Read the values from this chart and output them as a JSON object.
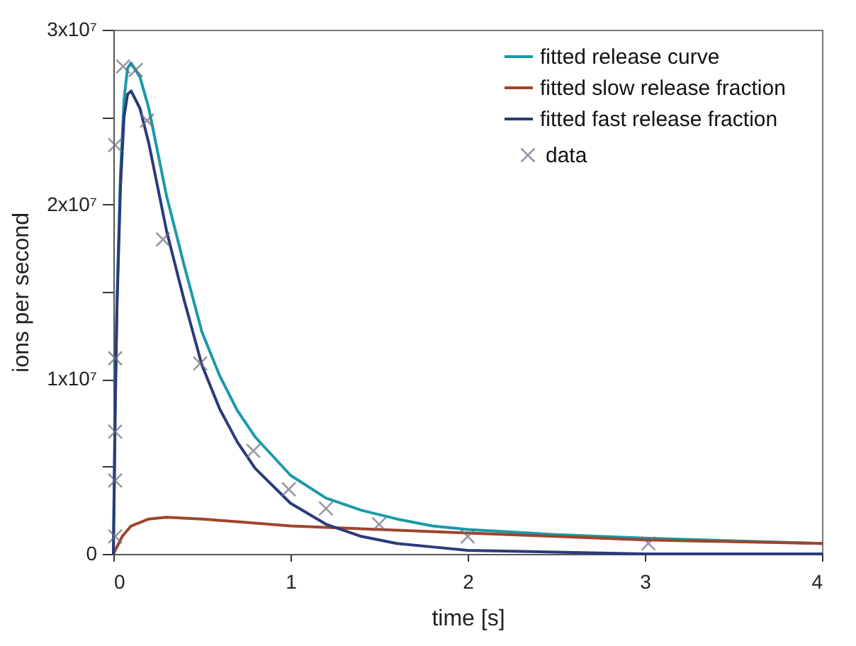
{
  "chart_data": {
    "type": "line",
    "xlabel": "time [s]",
    "ylabel": "ions per second",
    "xlim": [
      0,
      4
    ],
    "xticks": [
      0,
      1,
      2,
      3,
      4
    ],
    "ylim": [
      0,
      30000000
    ],
    "yticks": [
      0,
      {
        "value": 5000000,
        "label": null
      },
      {
        "value": 10000000,
        "label": "1x10⁷"
      },
      {
        "value": 15000000,
        "label": null
      },
      {
        "value": 20000000,
        "label": "2x10⁷"
      },
      {
        "value": 25000000,
        "label": null
      },
      {
        "value": 30000000,
        "label": "3x10⁷"
      }
    ],
    "grid": false,
    "legend": "top right",
    "series": [
      {
        "name": "fitted release curve",
        "color": "#1a9aa8",
        "x": [
          0,
          0.01,
          0.02,
          0.04,
          0.06,
          0.08,
          0.1,
          0.15,
          0.2,
          0.3,
          0.4,
          0.5,
          0.6,
          0.7,
          0.8,
          1.0,
          1.2,
          1.4,
          1.6,
          1.8,
          2.0,
          2.5,
          3.0,
          4.0
        ],
        "values": [
          0,
          8200000,
          14400000,
          21700000,
          26000000,
          27800000,
          28100000,
          27300000,
          25500000,
          20500000,
          16500000,
          12700000,
          10200000,
          8200000,
          6700000,
          4500000,
          3200000,
          2500000,
          2000000,
          1600000,
          1400000,
          1100000,
          900000,
          600000
        ]
      },
      {
        "name": "fitted slow release fraction",
        "color": "#a0442c",
        "x": [
          0,
          0.05,
          0.1,
          0.2,
          0.3,
          0.5,
          0.75,
          1.0,
          1.5,
          2.0,
          2.5,
          3.0,
          3.5,
          4.0
        ],
        "values": [
          0,
          1000000,
          1600000,
          2000000,
          2100000,
          2000000,
          1800000,
          1600000,
          1400000,
          1200000,
          1000000,
          800000,
          700000,
          600000
        ]
      },
      {
        "name": "fitted fast release fraction",
        "color": "#2b3a7a",
        "x": [
          0,
          0.01,
          0.02,
          0.04,
          0.06,
          0.08,
          0.1,
          0.15,
          0.2,
          0.3,
          0.4,
          0.5,
          0.6,
          0.7,
          0.8,
          1.0,
          1.2,
          1.4,
          1.6,
          1.8,
          2.0,
          2.5,
          3.0,
          4.0
        ],
        "values": [
          0,
          8000000,
          14000000,
          21000000,
          25000000,
          26300000,
          26500000,
          25500000,
          23500000,
          18500000,
          14500000,
          10800000,
          8300000,
          6400000,
          4900000,
          2900000,
          1700000,
          1000000,
          600000,
          400000,
          200000,
          100000,
          0,
          0
        ]
      },
      {
        "name": "data",
        "type": "scatter",
        "marker": "cross",
        "color": "#6b6b80",
        "x": [
          0.01,
          0.01,
          0.01,
          0.01,
          0.01,
          0.055,
          0.126,
          0.19,
          0.28,
          0.49,
          0.79,
          0.99,
          1.2,
          1.5,
          2.0,
          3.02
        ],
        "values": [
          1000000,
          4200000,
          7000000,
          11200000,
          23400000,
          27900000,
          27700000,
          24800000,
          18000000,
          10900000,
          5900000,
          3700000,
          2600000,
          1700000,
          1000000,
          600000
        ]
      }
    ]
  }
}
